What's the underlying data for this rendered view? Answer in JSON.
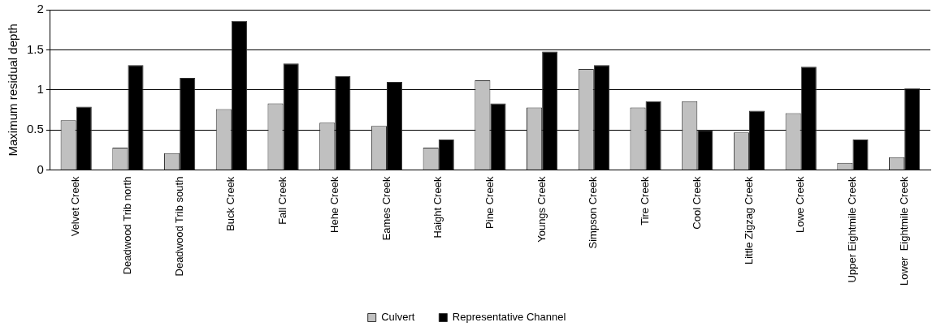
{
  "chart_data": {
    "type": "bar",
    "ylabel": "Maximum residual depth",
    "categories": [
      "Velvet Creek",
      "Deadwood Trib north",
      "Deadwood Trib south",
      "Buck Creek",
      "Fall Creek",
      "Hehe Creek",
      "Eames Creek",
      "Haight Creek",
      "Pine Creek",
      "Youngs Creek",
      "Simpson Creek",
      "Tire Creek",
      "Cool Creek",
      "Little Zigzag Creek",
      "Lowe Creek",
      "Upper Eightmile Creek",
      "Lower  Eightmile Creek"
    ],
    "series": [
      {
        "name": "Culvert",
        "color": "#c0c0c0",
        "values": [
          0.62,
          0.28,
          0.21,
          0.76,
          0.83,
          0.59,
          0.55,
          0.28,
          1.12,
          0.78,
          1.26,
          0.78,
          0.86,
          0.47,
          0.71,
          0.09,
          0.16
        ]
      },
      {
        "name": "Representative Channel",
        "color": "#000000",
        "values": [
          0.79,
          1.31,
          1.15,
          1.86,
          1.33,
          1.17,
          1.1,
          0.38,
          0.83,
          1.48,
          1.31,
          0.86,
          0.5,
          0.74,
          1.29,
          0.38,
          1.02
        ]
      }
    ],
    "ylim": [
      0,
      2
    ],
    "yticks": [
      0,
      0.5,
      1,
      1.5,
      2
    ],
    "grid": "y",
    "legend": "bottom"
  }
}
